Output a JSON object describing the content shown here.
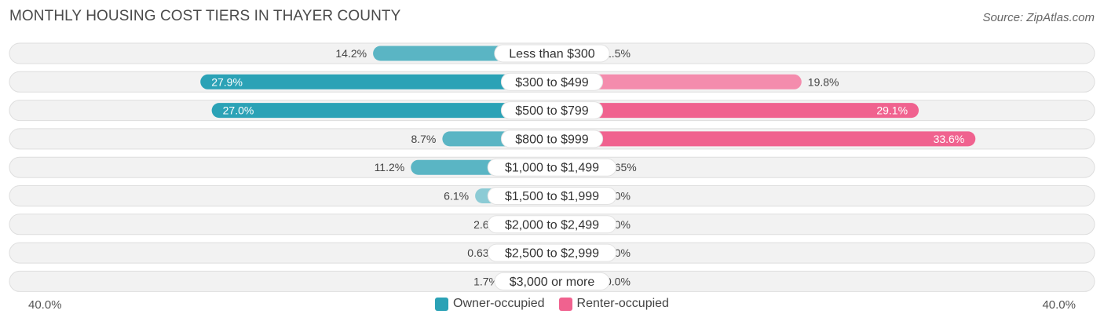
{
  "title": "MONTHLY HOUSING COST TIERS IN THAYER COUNTY",
  "source": "Source: ZipAtlas.com",
  "chart_data": {
    "type": "bar",
    "orientation": "diverging-horizontal",
    "categories": [
      "Less than $300",
      "$300 to $499",
      "$500 to $799",
      "$800 to $999",
      "$1,000 to $1,499",
      "$1,500 to $1,999",
      "$2,000 to $2,499",
      "$2,500 to $2,999",
      "$3,000 or more"
    ],
    "series": [
      {
        "name": "Owner-occupied",
        "values": [
          14.2,
          27.9,
          27.0,
          8.7,
          11.2,
          6.1,
          2.6,
          0.63,
          1.7
        ],
        "labels": [
          "14.2%",
          "27.9%",
          "27.0%",
          "8.7%",
          "11.2%",
          "6.1%",
          "2.6%",
          "0.63%",
          "1.7%"
        ],
        "color": "#5ab5c4",
        "color_strong": "#2ba2b6",
        "color_light": "#8ccbd5"
      },
      {
        "name": "Renter-occupied",
        "values": [
          1.5,
          19.8,
          29.1,
          33.6,
          0.65,
          0.0,
          0.0,
          0.0,
          0.0
        ],
        "labels": [
          "1.5%",
          "19.8%",
          "29.1%",
          "33.6%",
          "0.65%",
          "0.0%",
          "0.0%",
          "0.0%",
          "0.0%"
        ],
        "color": "#f48cad",
        "color_strong": "#f0628f",
        "color_light": "#f7a9c3"
      }
    ],
    "axis": {
      "left_label": "40.0%",
      "right_label": "40.0%",
      "max": 40.0
    },
    "legend": {
      "position": "bottom-center",
      "items": [
        "Owner-occupied",
        "Renter-occupied"
      ]
    }
  }
}
